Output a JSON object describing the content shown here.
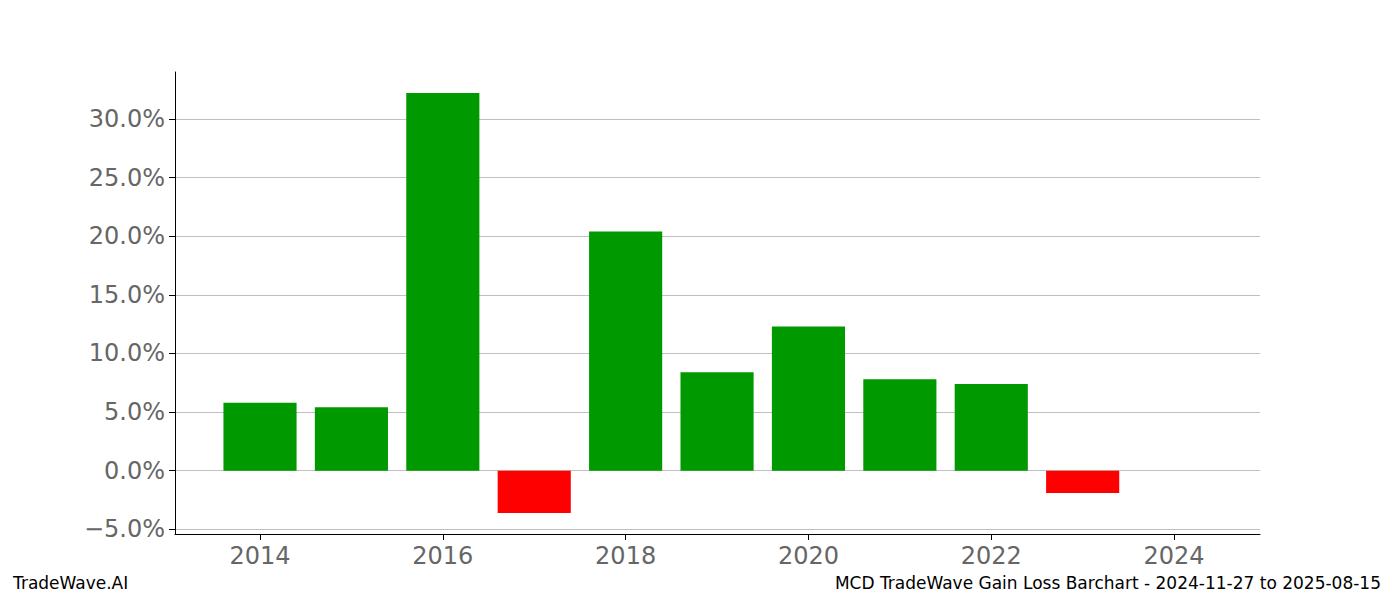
{
  "chart_data": {
    "type": "bar",
    "title": "MCD TradeWave Gain Loss Barchart - 2024-11-27 to 2025-08-15",
    "annotations": [
      "TradeWave.AI"
    ],
    "x": [
      2014,
      2015,
      2016,
      2017,
      2018,
      2019,
      2020,
      2021,
      2022,
      2023
    ],
    "values": [
      5.8,
      5.4,
      32.2,
      -3.6,
      20.4,
      8.4,
      12.3,
      7.8,
      7.4,
      -1.9
    ],
    "colors": [
      "#009900",
      "#009900",
      "#009900",
      "#ff0000",
      "#009900",
      "#009900",
      "#009900",
      "#009900",
      "#009900",
      "#ff0000"
    ],
    "xlim": [
      2013.07,
      2024.94
    ],
    "xticks": [
      2014,
      2016,
      2018,
      2020,
      2022,
      2024
    ],
    "ylim": [
      -5.4,
      34.0
    ],
    "yticks": [
      {
        "value": -5,
        "label": "−5.0%"
      },
      {
        "value": 0,
        "label": "0.0%"
      },
      {
        "value": 5,
        "label": "5.0%"
      },
      {
        "value": 10,
        "label": "10.0%"
      },
      {
        "value": 15,
        "label": "15.0%"
      },
      {
        "value": 20,
        "label": "20.0%"
      },
      {
        "value": 25,
        "label": "25.0%"
      },
      {
        "value": 30,
        "label": "30.0%"
      }
    ],
    "grid": true
  }
}
